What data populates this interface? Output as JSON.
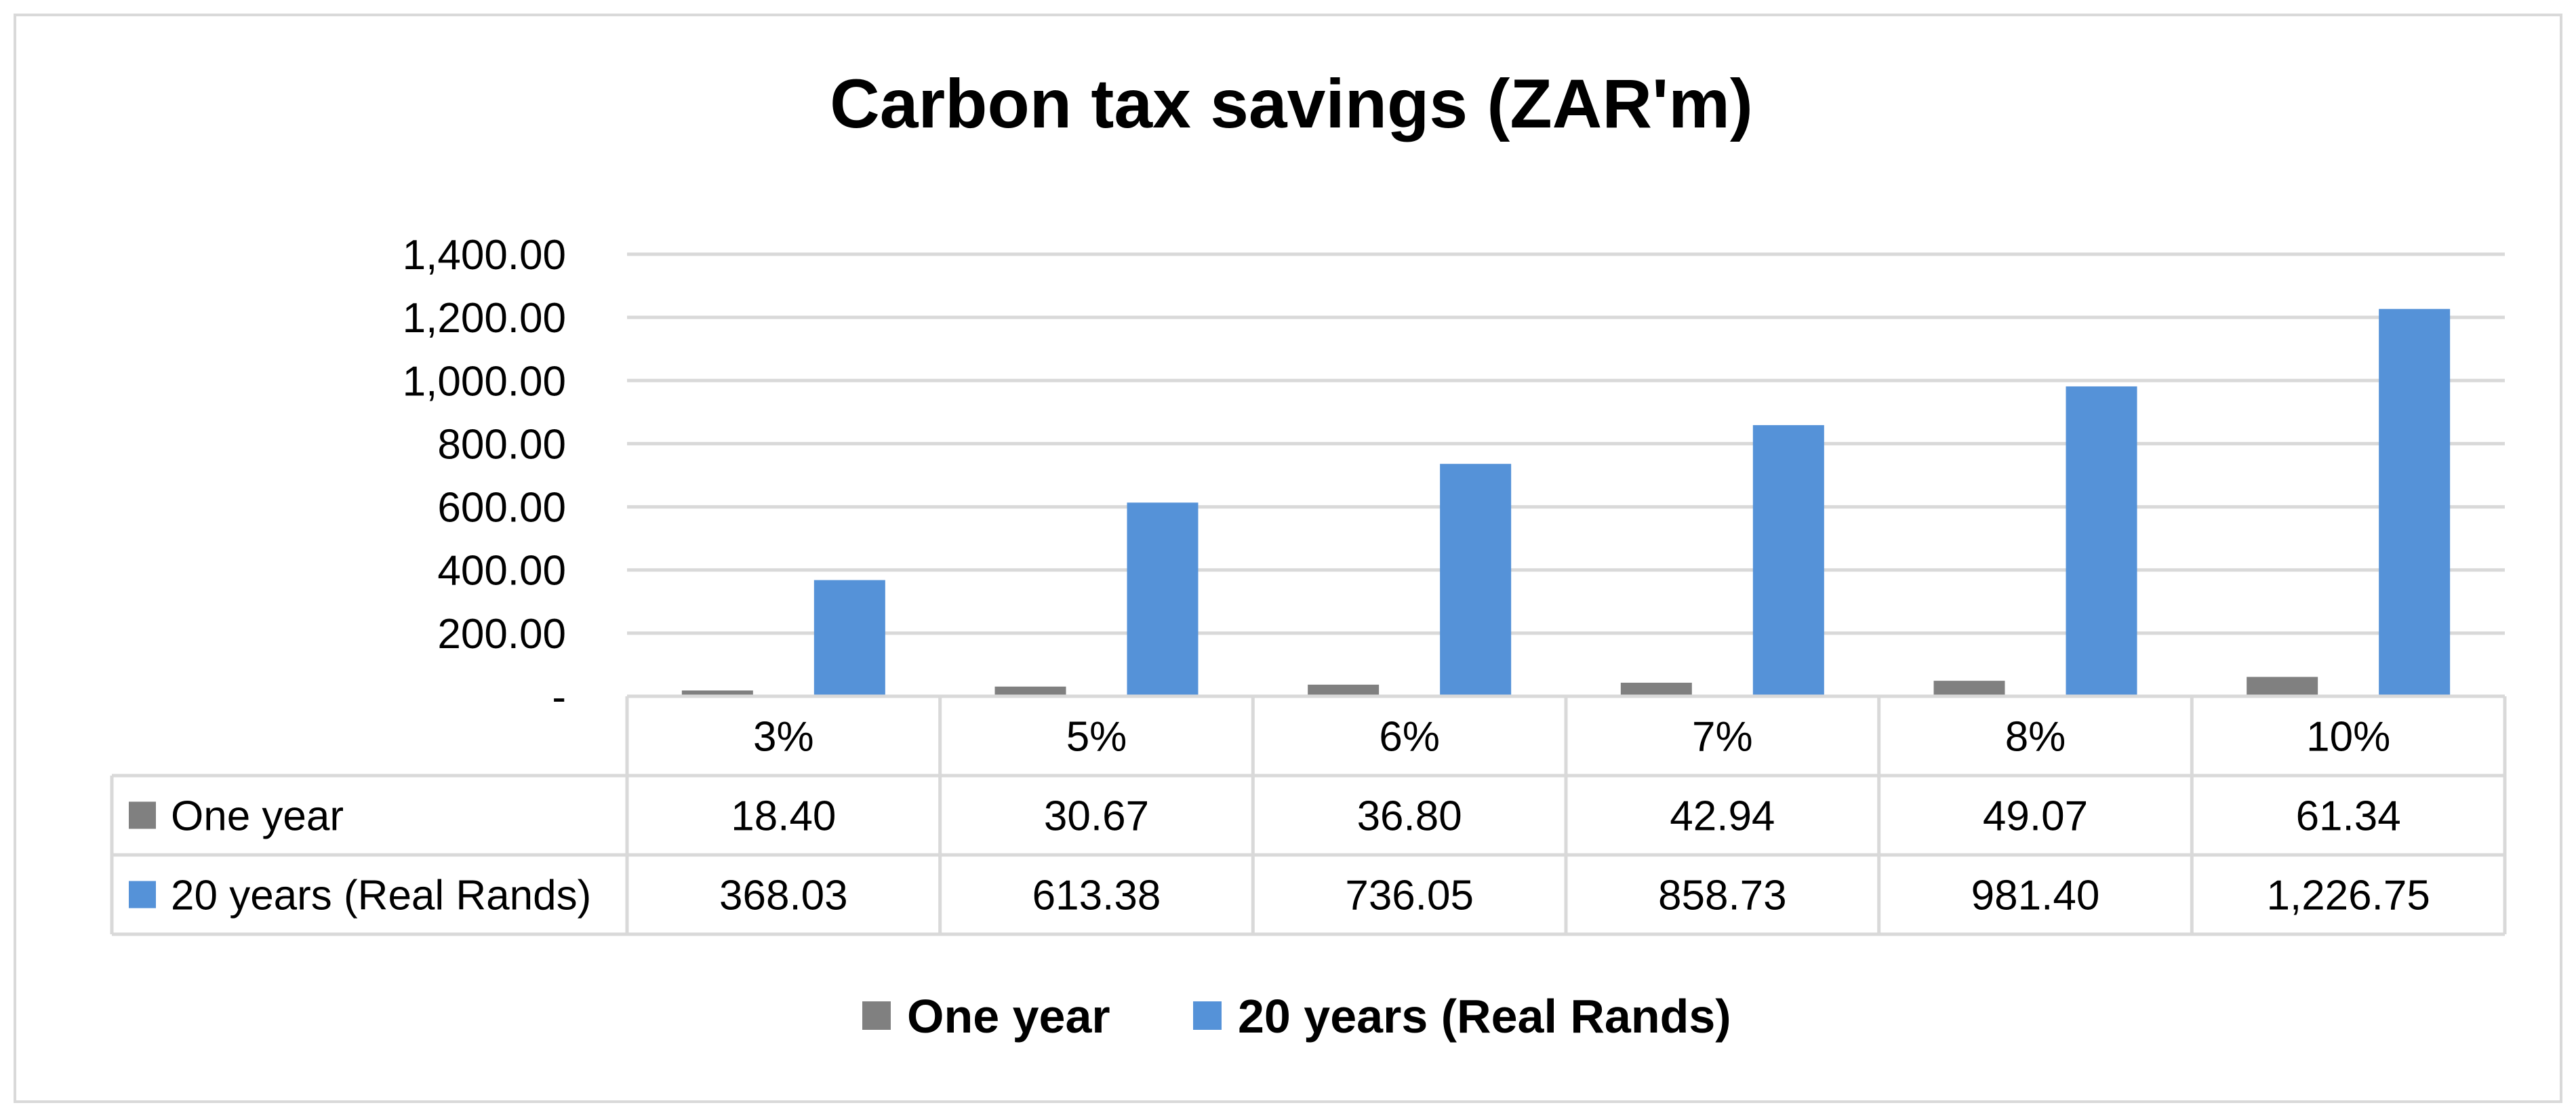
{
  "chart_data": {
    "type": "bar",
    "title": "Carbon tax savings (ZAR'm)",
    "categories": [
      "3%",
      "5%",
      "6%",
      "7%",
      "8%",
      "10%"
    ],
    "series": [
      {
        "name": "One year",
        "color": "#808080",
        "values": [
          18.4,
          30.67,
          36.8,
          42.94,
          49.07,
          61.34
        ],
        "labels": [
          "18.40",
          "30.67",
          "36.80",
          "42.94",
          "49.07",
          "61.34"
        ]
      },
      {
        "name": "20 years (Real Rands)",
        "color": "#5592d8",
        "values": [
          368.03,
          613.38,
          736.05,
          858.73,
          981.4,
          1226.75
        ],
        "labels": [
          "368.03",
          "613.38",
          "736.05",
          "858.73",
          "981.40",
          "1,226.75"
        ]
      }
    ],
    "yaxis": {
      "min": 0,
      "max": 1400,
      "ticks": [
        0,
        200,
        400,
        600,
        800,
        1000,
        1200,
        1400
      ],
      "tick_labels": [
        "-",
        "200.00",
        "400.00",
        "600.00",
        "800.00",
        "1,000.00",
        "1,200.00",
        "1,400.00"
      ]
    },
    "xlabel": "",
    "ylabel": "",
    "grid": true,
    "data_table": true,
    "legend_position": "bottom"
  }
}
